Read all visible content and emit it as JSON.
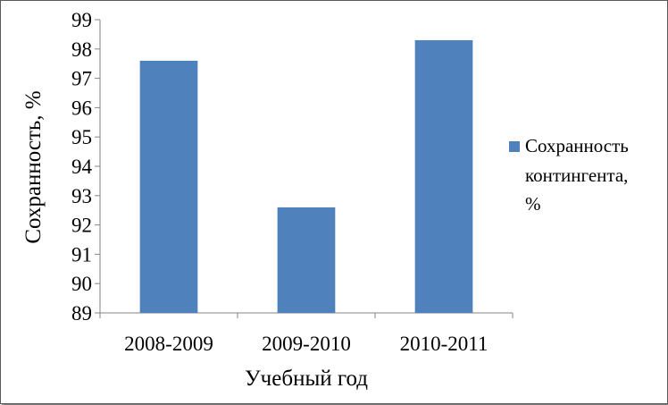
{
  "chart_data": {
    "type": "bar",
    "categories": [
      "2008-2009",
      "2009-2010",
      "2010-2011"
    ],
    "series": [
      {
        "name": "Сохранность контингента, %",
        "values": [
          97.6,
          92.6,
          98.3
        ]
      }
    ],
    "xlabel": "Учебный год",
    "ylabel": "Сохранность,  %",
    "ylim": [
      89,
      99
    ],
    "yticks": [
      89,
      90,
      91,
      92,
      93,
      94,
      95,
      96,
      97,
      98,
      99
    ],
    "grid": false,
    "legend_position": "right",
    "bar_color": "#4f81bd"
  },
  "legend_lines": [
    "Сохранность",
    "контингента,",
    "%"
  ]
}
